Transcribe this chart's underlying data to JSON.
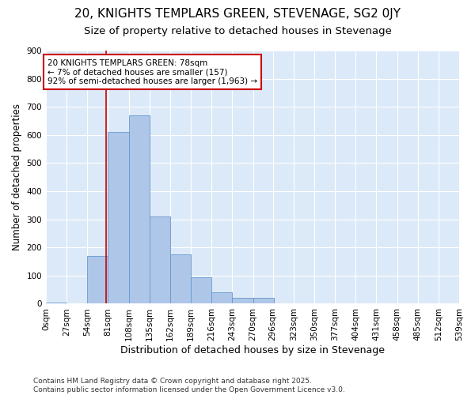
{
  "title1": "20, KNIGHTS TEMPLARS GREEN, STEVENAGE, SG2 0JY",
  "title2": "Size of property relative to detached houses in Stevenage",
  "xlabel": "Distribution of detached houses by size in Stevenage",
  "ylabel": "Number of detached properties",
  "bins": [
    0,
    27,
    54,
    81,
    108,
    135,
    162,
    189,
    216,
    243,
    270,
    296,
    323,
    350,
    377,
    404,
    431,
    458,
    485,
    512,
    539
  ],
  "counts": [
    5,
    0,
    170,
    610,
    670,
    310,
    175,
    95,
    40,
    20,
    20,
    0,
    0,
    0,
    0,
    0,
    0,
    0,
    0,
    0
  ],
  "bar_color": "#aec6e8",
  "bar_edge_color": "#6699cc",
  "vline_x": 78,
  "vline_color": "#cc0000",
  "annotation_text": "20 KNIGHTS TEMPLARS GREEN: 78sqm\n← 7% of detached houses are smaller (157)\n92% of semi-detached houses are larger (1,963) →",
  "annotation_box_color": "#ffffff",
  "annotation_box_edge": "#cc0000",
  "ylim": [
    0,
    900
  ],
  "yticks": [
    0,
    100,
    200,
    300,
    400,
    500,
    600,
    700,
    800,
    900
  ],
  "bg_color": "#dce9f8",
  "footer_text": "Contains HM Land Registry data © Crown copyright and database right 2025.\nContains public sector information licensed under the Open Government Licence v3.0.",
  "title1_fontsize": 11,
  "title2_fontsize": 9.5,
  "xlabel_fontsize": 9,
  "ylabel_fontsize": 8.5,
  "tick_fontsize": 7.5,
  "annotation_fontsize": 7.5,
  "footer_fontsize": 6.5
}
